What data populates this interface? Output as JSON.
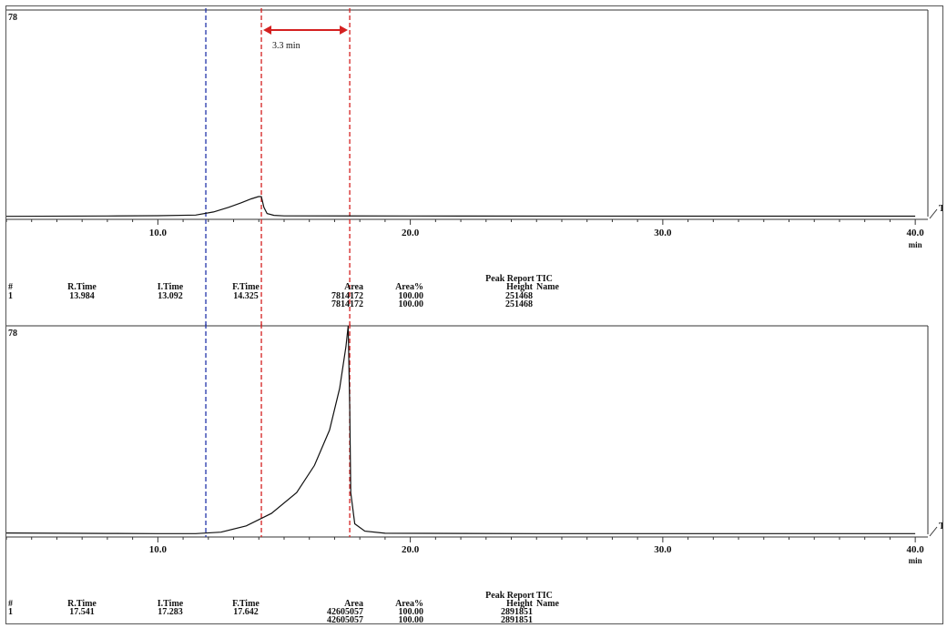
{
  "chart_data": [
    {
      "type": "line",
      "corner_label": "78",
      "side_label": "T",
      "x_unit": "min",
      "xlim": [
        4,
        40.5
      ],
      "x_ticks": [
        10.0,
        20.0,
        30.0,
        40.0
      ],
      "x_tick_labels": [
        "10.0",
        "20.0",
        "30.0",
        "40.0"
      ],
      "baseline_only": false,
      "series": [
        {
          "x": [
            4,
            8,
            10,
            11.5,
            12.2,
            12.8,
            13.3,
            13.7,
            13.984,
            14.1,
            14.2,
            14.325,
            14.6,
            15,
            20,
            30,
            40
          ],
          "y": [
            0.002,
            0.004,
            0.006,
            0.01,
            0.03,
            0.06,
            0.09,
            0.115,
            0.13,
            0.13,
            0.06,
            0.02,
            0.008,
            0.005,
            0.004,
            0.003,
            0.003
          ]
        }
      ],
      "annotations": {
        "blue_dashed_x": 11.9,
        "red_dashed_x": [
          14.1,
          17.6
        ],
        "arrow_label": "3.3 min"
      },
      "peak_report": {
        "title": "Peak Report TIC",
        "headers": [
          "#",
          "R.Time",
          "I.Time",
          "F.Time",
          "Area",
          "Area%",
          "Height",
          "Name"
        ],
        "rows": [
          [
            "1",
            "13.984",
            "13.092",
            "14.325",
            "7814172",
            "100.00",
            "251468",
            ""
          ]
        ],
        "totals": [
          "7814172",
          "100.00",
          "251468"
        ]
      }
    },
    {
      "type": "line",
      "corner_label": "78",
      "side_label": "T",
      "x_unit": "min",
      "xlim": [
        4,
        40.5
      ],
      "x_ticks": [
        10.0,
        20.0,
        30.0,
        40.0
      ],
      "x_tick_labels": [
        "10.0",
        "20.0",
        "30.0",
        "40.0"
      ],
      "series": [
        {
          "x": [
            4,
            8,
            10,
            11.5,
            12.5,
            13.5,
            14.5,
            15.5,
            16.2,
            16.8,
            17.2,
            17.45,
            17.541,
            17.6,
            17.642,
            17.8,
            18.2,
            19,
            25,
            30,
            40
          ],
          "y": [
            0.006,
            0.004,
            0.003,
            0.003,
            0.01,
            0.04,
            0.1,
            0.2,
            0.33,
            0.5,
            0.7,
            0.9,
            1.0,
            0.6,
            0.2,
            0.05,
            0.015,
            0.005,
            0.003,
            0.003,
            0.003
          ]
        }
      ],
      "annotations": {
        "blue_dashed_x": 11.9,
        "red_dashed_x": [
          14.1,
          17.6
        ]
      },
      "peak_report": {
        "title": "Peak Report TIC",
        "headers": [
          "#",
          "R.Time",
          "I.Time",
          "F.Time",
          "Area",
          "Area%",
          "Height",
          "Name"
        ],
        "rows": [
          [
            "1",
            "17.541",
            "17.283",
            "17.642",
            "42605057",
            "100.00",
            "2891851",
            ""
          ]
        ],
        "totals": [
          "42605057",
          "100.00",
          "2891851"
        ]
      }
    }
  ],
  "style": {
    "trace_color": "#111111",
    "blue_line_color": "#2233aa",
    "red_line_color": "#d42020"
  }
}
